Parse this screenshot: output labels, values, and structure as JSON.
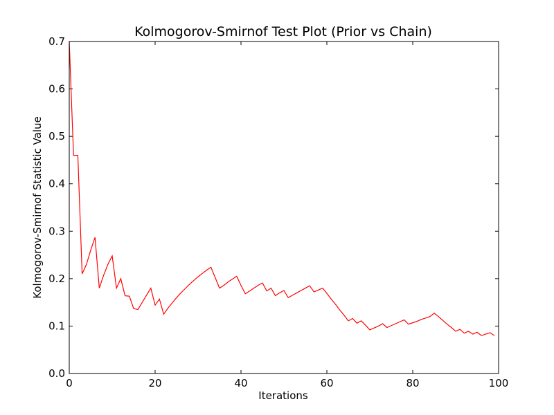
{
  "chart_data": {
    "type": "line",
    "title": "Kolmogorov-Smirnof Test Plot (Prior vs Chain)",
    "xlabel": "Iterations",
    "ylabel": "Kolmogorov-Smirnof Statistic Value",
    "xlim": [
      0,
      100
    ],
    "ylim": [
      0.0,
      0.7
    ],
    "xticks": [
      0,
      20,
      40,
      60,
      80,
      100
    ],
    "xtick_labels": [
      "0",
      "20",
      "40",
      "60",
      "80",
      "100"
    ],
    "yticks": [
      0.0,
      0.1,
      0.2,
      0.3,
      0.4,
      0.5,
      0.6,
      0.7
    ],
    "ytick_labels": [
      "0.0",
      "0.1",
      "0.2",
      "0.3",
      "0.4",
      "0.5",
      "0.6",
      "0.7"
    ],
    "grid": false,
    "legend": "none",
    "colors": {
      "line": "#ff0000",
      "axes": "#000000",
      "background": "#ffffff"
    },
    "series": [
      {
        "x": [
          0,
          1,
          2,
          3,
          4,
          5,
          6,
          7,
          8,
          9,
          10,
          11,
          12,
          13,
          14,
          15,
          16,
          17,
          18,
          19,
          20,
          21,
          22,
          23,
          24,
          25,
          26,
          27,
          28,
          29,
          30,
          31,
          32,
          33,
          34,
          35,
          36,
          37,
          38,
          39,
          40,
          41,
          42,
          43,
          44,
          45,
          46,
          47,
          48,
          49,
          50,
          51,
          52,
          53,
          54,
          55,
          56,
          57,
          58,
          59,
          60,
          61,
          62,
          63,
          64,
          65,
          66,
          67,
          68,
          69,
          70,
          71,
          72,
          73,
          74,
          75,
          76,
          77,
          78,
          79,
          80,
          81,
          82,
          83,
          84,
          85,
          86,
          87,
          88,
          89,
          90,
          91,
          92,
          93,
          94,
          95,
          96,
          97,
          98,
          99
        ],
        "values": [
          0.7,
          0.46,
          0.46,
          0.21,
          0.23,
          0.26,
          0.287,
          0.18,
          0.207,
          0.23,
          0.248,
          0.18,
          0.2,
          0.164,
          0.163,
          0.137,
          0.135,
          0.15,
          0.165,
          0.18,
          0.144,
          0.157,
          0.125,
          0.138,
          0.149,
          0.16,
          0.17,
          0.179,
          0.188,
          0.196,
          0.204,
          0.211,
          0.218,
          0.224,
          0.202,
          0.18,
          0.186,
          0.193,
          0.199,
          0.205,
          0.186,
          0.168,
          0.174,
          0.18,
          0.186,
          0.191,
          0.174,
          0.18,
          0.164,
          0.17,
          0.175,
          0.16,
          0.165,
          0.17,
          0.175,
          0.18,
          0.185,
          0.172,
          0.176,
          0.18,
          0.169,
          0.157,
          0.146,
          0.134,
          0.123,
          0.111,
          0.116,
          0.106,
          0.111,
          0.102,
          0.092,
          0.096,
          0.1,
          0.105,
          0.097,
          0.101,
          0.105,
          0.109,
          0.113,
          0.104,
          0.107,
          0.11,
          0.114,
          0.117,
          0.12,
          0.127,
          0.12,
          0.112,
          0.104,
          0.097,
          0.089,
          0.093,
          0.085,
          0.089,
          0.083,
          0.087,
          0.08,
          0.083,
          0.086,
          0.08
        ]
      }
    ]
  }
}
